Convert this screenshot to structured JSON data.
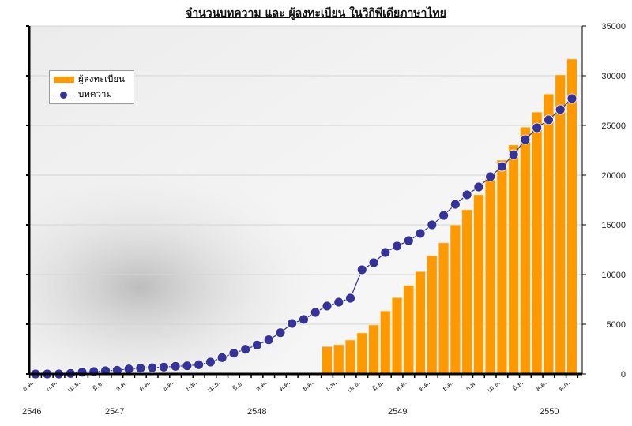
{
  "chart_data": {
    "type": "bar+line",
    "title": "จำนวนบทความ และ ผู้ลงทะเบียน ในวิกิพีเดียภาษาไทย",
    "ylim": [
      0,
      35000
    ],
    "yticks": [
      "0",
      "5000",
      "10000",
      "15000",
      "20000",
      "25000",
      "30000",
      "35000"
    ],
    "y_axis_side": "right",
    "grid": true,
    "legend_placement": "top-left",
    "month_labels": [
      "ธ.ค.",
      "ก.พ.",
      "เม.ย.",
      "มิ.ย.",
      "ส.ค.",
      "ต.ค.",
      "ธ.ค.",
      "ก.พ.",
      "เม.ย.",
      "มิ.ย.",
      "ส.ค.",
      "ต.ค.",
      "ธ.ค.",
      "ก.พ.",
      "เม.ย.",
      "มิ.ย.",
      "ส.ค.",
      "ต.ค.",
      "ธ.ค.",
      "ก.พ.",
      "เม.ย.",
      "มิ.ย.",
      "ส.ค.",
      "ต.ค."
    ],
    "year_labels": [
      "2546",
      "2547",
      "2548",
      "2549",
      "2550"
    ],
    "series": [
      {
        "name": "ผู้ลงทะเบียน",
        "kind": "bar",
        "color": "#FF9900",
        "values": [
          null,
          null,
          null,
          null,
          null,
          null,
          null,
          null,
          null,
          null,
          null,
          null,
          null,
          null,
          null,
          null,
          null,
          null,
          null,
          null,
          null,
          null,
          null,
          null,
          null,
          2750,
          2940,
          3410,
          4130,
          4920,
          6330,
          7670,
          8910,
          10290,
          11900,
          13180,
          14980,
          16510,
          18020,
          20030,
          21510,
          23020,
          24820,
          26330,
          28150,
          30080,
          31670
        ]
      },
      {
        "name": "บทความ",
        "kind": "line",
        "color": "#333399",
        "values": [
          0,
          0,
          0,
          50,
          180,
          240,
          320,
          370,
          500,
          580,
          630,
          690,
          770,
          820,
          930,
          1190,
          1640,
          2090,
          2480,
          2910,
          3440,
          4150,
          5080,
          5480,
          6190,
          6830,
          7220,
          7620,
          10480,
          11190,
          12220,
          12860,
          13410,
          14130,
          15000,
          15950,
          17060,
          18020,
          18810,
          19840,
          20870,
          22060,
          23570,
          24760,
          25560,
          26590,
          27700
        ]
      }
    ]
  }
}
